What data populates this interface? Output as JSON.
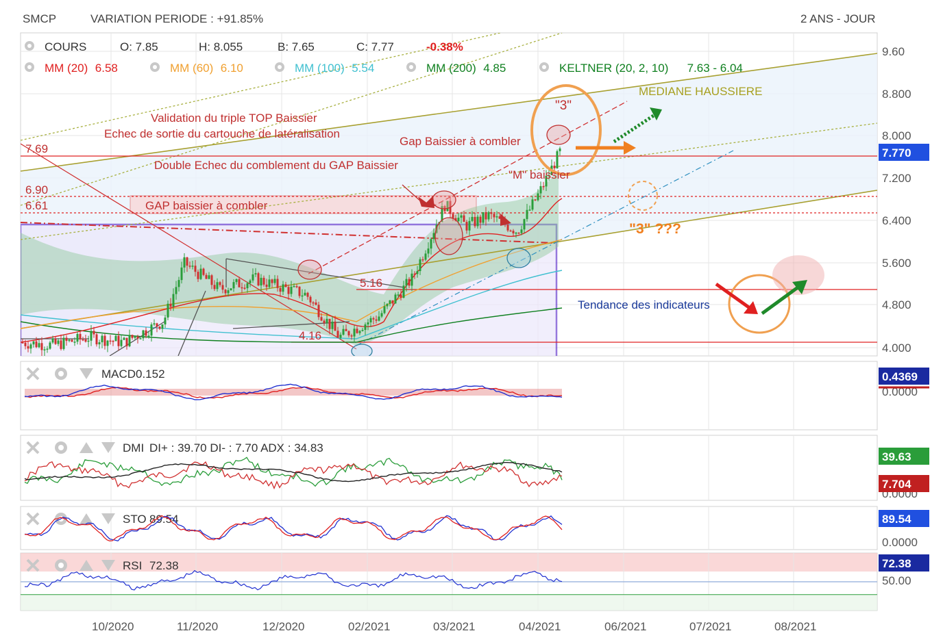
{
  "header": {
    "symbol": "SMCP",
    "variation": "VARIATION PERIODE : +91.85%",
    "period": "2 ANS - JOUR"
  },
  "ohlc": {
    "label": "COURS",
    "open": "O: 7.85",
    "high": "H: 8.055",
    "low": "B: 7.65",
    "close": "C: 7.77",
    "change": "-0.38%"
  },
  "indicators": [
    {
      "label": "MM (20)",
      "value": "6.58",
      "color": "#e02020"
    },
    {
      "label": "MM (60)",
      "value": "6.10",
      "color": "#f0a030"
    },
    {
      "label": "MM (100)",
      "value": "5.54",
      "color": "#40c0d0"
    },
    {
      "label": "MM (200)",
      "value": "4.85",
      "color": "#108020"
    },
    {
      "label": "KELTNER (20, 2, 10)",
      "value": "7.63 - 6.04",
      "color": "#108020"
    }
  ],
  "annotations": {
    "triple_top": "Validation du triple TOP Baissier",
    "cartouche": "Echec de sortie du cartouche de latéralisation",
    "double_echec": "Double Echec du comblement du GAP Baissier",
    "gap_combler": "Gap Baissier à combler",
    "gap_combler2": "GAP baissier à combler",
    "m_baissier": "\"M\" baissier",
    "three": "\"3\"",
    "three_q": "\"3\" ???",
    "mediane": "MEDIANE HAUSSIERE",
    "tendance": "Tendance des indicateurs",
    "lvl_769": "7.69",
    "lvl_690": "6.90",
    "lvl_661": "6.61",
    "lvl_516": "5.16",
    "lvl_416": "4.16"
  },
  "price_axis": [
    "9.60",
    "8.800",
    "8.000",
    "7.200",
    "6.400",
    "5.600",
    "4.800",
    "4.000"
  ],
  "price_badge": "7.770",
  "time_axis": [
    "10/2020",
    "11/2020",
    "12/2020",
    "02/2021",
    "03/2021",
    "04/2021",
    "06/2021",
    "07/2021",
    "08/2021"
  ],
  "panes": {
    "macd": {
      "label": "MACD",
      "value": "0.152",
      "badge": "0.4369",
      "axis": "0.0000"
    },
    "dmi": {
      "label": "DMI",
      "value": "DI+ : 39.70 DI- : 7.70 ADX : 34.83",
      "badge1": "39.63",
      "badge2": "7.704",
      "axis": "0.0000"
    },
    "sto": {
      "label": "STO",
      "value": "89.54",
      "badge": "89.54",
      "axis": "0.0000"
    },
    "rsi": {
      "label": "RSI",
      "value": "72.38",
      "badge": "72.38",
      "axis": "50.00"
    }
  },
  "colors": {
    "up": "#2a9d3a",
    "down": "#d03030",
    "badge_blue": "#2050e0",
    "badge_green": "#2a9d3a",
    "badge_red": "#c02020",
    "badge_navy": "#1a2aa0"
  },
  "chart_data": {
    "type": "candlestick",
    "x_range": [
      "2020-09",
      "2021-08"
    ],
    "y_range": [
      4.0,
      9.6
    ],
    "close_path": [
      [
        "2020-09-01",
        4.1
      ],
      [
        "2020-09-15",
        4.05
      ],
      [
        "2020-10-01",
        4.2
      ],
      [
        "2020-10-15",
        4.1
      ],
      [
        "2020-11-01",
        4.5
      ],
      [
        "2020-11-10",
        5.6
      ],
      [
        "2020-11-25",
        5.1
      ],
      [
        "2020-12-10",
        5.3
      ],
      [
        "2021-01-01",
        5.0
      ],
      [
        "2021-01-15",
        4.2
      ],
      [
        "2021-02-01",
        4.6
      ],
      [
        "2021-02-15",
        5.3
      ],
      [
        "2021-03-01",
        6.7
      ],
      [
        "2021-03-10",
        6.3
      ],
      [
        "2021-03-20",
        6.5
      ],
      [
        "2021-04-01",
        6.2
      ],
      [
        "2021-04-10",
        6.9
      ],
      [
        "2021-04-20",
        7.77
      ]
    ]
  }
}
